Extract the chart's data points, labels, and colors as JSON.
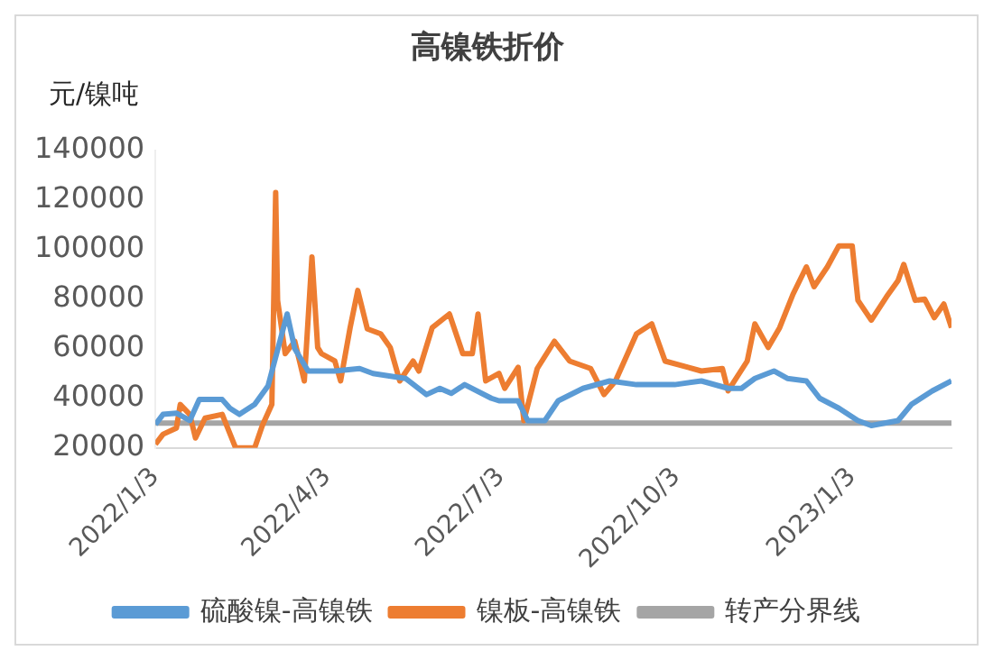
{
  "chart_data": {
    "type": "line",
    "title": "高镍铁折价",
    "ylabel": "元/镍吨",
    "xlim": [
      "2022-01-03",
      "2023-02-24"
    ],
    "xticks": [
      {
        "value": "2022-01-03",
        "label": "2022/1/3"
      },
      {
        "value": "2022-04-03",
        "label": "2022/4/3"
      },
      {
        "value": "2022-07-03",
        "label": "2022/7/3"
      },
      {
        "value": "2022-10-03",
        "label": "2022/10/3"
      },
      {
        "value": "2023-01-03",
        "label": "2023/1/3"
      }
    ],
    "ylim": [
      20000,
      140000
    ],
    "yticks": [
      20000,
      40000,
      60000,
      80000,
      100000,
      120000,
      140000
    ],
    "grid": false,
    "legend": "bottom",
    "series": [
      {
        "name": "硫酸镍-高镍铁",
        "color": "#5b9bd5",
        "x": [
          "2022-01-03",
          "2022-01-07",
          "2022-01-14",
          "2022-01-21",
          "2022-01-26",
          "2022-02-07",
          "2022-02-11",
          "2022-02-16",
          "2022-02-24",
          "2022-03-03",
          "2022-03-13",
          "2022-03-17",
          "2022-03-24",
          "2022-04-07",
          "2022-04-20",
          "2022-04-27",
          "2022-05-14",
          "2022-05-25",
          "2022-06-01",
          "2022-06-07",
          "2022-06-14",
          "2022-06-28",
          "2022-07-02",
          "2022-07-12",
          "2022-07-17",
          "2022-07-26",
          "2022-08-02",
          "2022-08-15",
          "2022-08-29",
          "2022-09-12",
          "2022-10-02",
          "2022-10-16",
          "2022-10-30",
          "2022-11-06",
          "2022-11-13",
          "2022-11-23",
          "2022-11-30",
          "2022-12-10",
          "2022-12-17",
          "2022-12-27",
          "2023-01-06",
          "2023-01-13",
          "2023-01-27",
          "2023-02-03",
          "2023-02-14",
          "2023-02-24"
        ],
        "values": [
          29500,
          33500,
          34000,
          31000,
          39500,
          39500,
          36000,
          33500,
          37500,
          45000,
          74000,
          60000,
          51000,
          51000,
          52000,
          50000,
          48000,
          41500,
          44000,
          42000,
          45500,
          40000,
          39000,
          39000,
          31000,
          31000,
          39000,
          44000,
          47000,
          45500,
          45500,
          47000,
          44000,
          44000,
          48000,
          51000,
          48000,
          47000,
          40000,
          36000,
          31000,
          29000,
          31000,
          37500,
          43000,
          47000
        ]
      },
      {
        "name": "镍板-高镍铁",
        "color": "#ed7d31",
        "x": [
          "2022-01-03",
          "2022-01-07",
          "2022-01-14",
          "2022-01-16",
          "2022-01-21",
          "2022-01-24",
          "2022-01-29",
          "2022-02-07",
          "2022-02-14",
          "2022-02-24",
          "2022-02-28",
          "2022-03-05",
          "2022-03-07",
          "2022-03-08",
          "2022-03-12",
          "2022-03-17",
          "2022-03-22",
          "2022-03-26",
          "2022-03-29",
          "2022-03-31",
          "2022-04-07",
          "2022-04-10",
          "2022-04-15",
          "2022-04-19",
          "2022-04-24",
          "2022-05-01",
          "2022-05-06",
          "2022-05-11",
          "2022-05-18",
          "2022-05-21",
          "2022-05-28",
          "2022-06-06",
          "2022-06-13",
          "2022-06-18",
          "2022-06-21",
          "2022-06-25",
          "2022-07-02",
          "2022-07-05",
          "2022-07-12",
          "2022-07-15",
          "2022-07-22",
          "2022-07-31",
          "2022-08-08",
          "2022-08-19",
          "2022-08-26",
          "2022-09-01",
          "2022-09-12",
          "2022-09-20",
          "2022-09-27",
          "2022-10-09",
          "2022-10-16",
          "2022-10-27",
          "2022-10-30",
          "2022-11-09",
          "2022-11-13",
          "2022-11-20",
          "2022-11-26",
          "2022-12-03",
          "2022-12-10",
          "2022-12-14",
          "2022-12-21",
          "2022-12-27",
          "2023-01-03",
          "2023-01-06",
          "2023-01-13",
          "2023-01-21",
          "2023-01-27",
          "2023-01-30",
          "2023-02-05",
          "2023-02-10",
          "2023-02-15",
          "2023-02-20",
          "2023-02-24"
        ],
        "values": [
          21500,
          25500,
          28000,
          37500,
          33500,
          24000,
          32000,
          33500,
          20000,
          20000,
          29000,
          37500,
          123000,
          79500,
          58000,
          63000,
          47000,
          97000,
          60500,
          58000,
          55000,
          47000,
          68500,
          83500,
          68000,
          66000,
          60500,
          47000,
          55000,
          51000,
          68500,
          74000,
          58000,
          58000,
          74000,
          47000,
          50000,
          44000,
          52500,
          31000,
          52000,
          63000,
          55000,
          52000,
          41500,
          47000,
          66000,
          70000,
          55000,
          52500,
          51000,
          52000,
          43000,
          55000,
          70000,
          60500,
          68500,
          82000,
          93000,
          85000,
          93000,
          101500,
          101500,
          79500,
          71500,
          81000,
          87500,
          94000,
          79500,
          80000,
          72500,
          78000,
          68500
        ]
      },
      {
        "name": "转产分界线",
        "color": "#a5a5a5",
        "x": [
          "2022-01-03",
          "2023-02-24"
        ],
        "values": [
          30000,
          30000
        ]
      }
    ]
  }
}
